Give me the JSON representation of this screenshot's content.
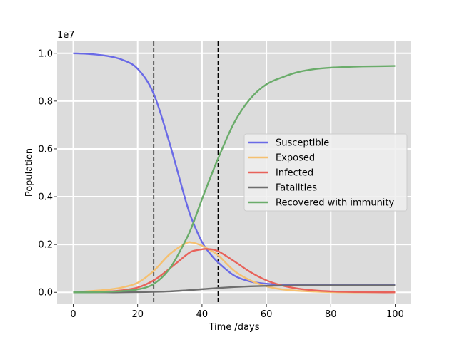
{
  "chart_data": {
    "type": "line",
    "title": "",
    "xlabel": "Time /days",
    "ylabel": "Population",
    "offset_text": "1e7",
    "xlim": [
      -5,
      105
    ],
    "ylim": [
      -0.05,
      1.05
    ],
    "y_scale_factor": 10000000,
    "xticks": [
      0,
      20,
      40,
      60,
      80,
      100
    ],
    "xtick_labels": [
      "0",
      "20",
      "40",
      "60",
      "80",
      "100"
    ],
    "yticks": [
      0.0,
      0.2,
      0.4,
      0.6,
      0.8,
      1.0
    ],
    "ytick_labels": [
      "0.0",
      "0.2",
      "0.4",
      "0.6",
      "0.8",
      "1.0"
    ],
    "grid": true,
    "background": "#dcdcdc",
    "legend_position": "center-right",
    "vertical_lines": [
      25,
      45
    ],
    "vertical_line_color": "#000000",
    "vertical_line_style": "dashed",
    "x": [
      0,
      5,
      10,
      15,
      20,
      25,
      30,
      35,
      37,
      40,
      42,
      45,
      50,
      55,
      60,
      65,
      70,
      75,
      80,
      85,
      90,
      95,
      100
    ],
    "series": [
      {
        "name": "Susceptible",
        "color": "#6a6ae6",
        "values": [
          1.0,
          0.997,
          0.99,
          0.974,
          0.935,
          0.83,
          0.62,
          0.38,
          0.3,
          0.21,
          0.17,
          0.125,
          0.07,
          0.045,
          0.036,
          0.032,
          0.031,
          0.03,
          0.03,
          0.03,
          0.03,
          0.03,
          0.03
        ]
      },
      {
        "name": "Exposed",
        "color": "#f5c070",
        "values": [
          0.0,
          0.005,
          0.01,
          0.02,
          0.04,
          0.09,
          0.16,
          0.205,
          0.208,
          0.195,
          0.18,
          0.155,
          0.09,
          0.05,
          0.025,
          0.012,
          0.006,
          0.003,
          0.001,
          0.0,
          0.0,
          0.0,
          0.0
        ]
      },
      {
        "name": "Infected",
        "color": "#e8625a",
        "values": [
          0.0,
          0.001,
          0.003,
          0.008,
          0.02,
          0.05,
          0.1,
          0.155,
          0.172,
          0.18,
          0.181,
          0.172,
          0.13,
          0.085,
          0.05,
          0.028,
          0.015,
          0.008,
          0.004,
          0.002,
          0.001,
          0.0,
          0.0
        ]
      },
      {
        "name": "Fatalities",
        "color": "#6e6e6e",
        "values": [
          0.0,
          0.0,
          0.0,
          0.0,
          0.001,
          0.002,
          0.004,
          0.008,
          0.01,
          0.013,
          0.015,
          0.018,
          0.022,
          0.025,
          0.027,
          0.028,
          0.029,
          0.029,
          0.029,
          0.029,
          0.029,
          0.029,
          0.029
        ]
      },
      {
        "name": "Recovered with immunity",
        "color": "#6aac6a",
        "values": [
          0.0,
          0.0,
          0.002,
          0.005,
          0.012,
          0.035,
          0.1,
          0.22,
          0.28,
          0.39,
          0.46,
          0.56,
          0.71,
          0.81,
          0.87,
          0.9,
          0.922,
          0.934,
          0.94,
          0.943,
          0.945,
          0.946,
          0.947
        ]
      }
    ]
  }
}
